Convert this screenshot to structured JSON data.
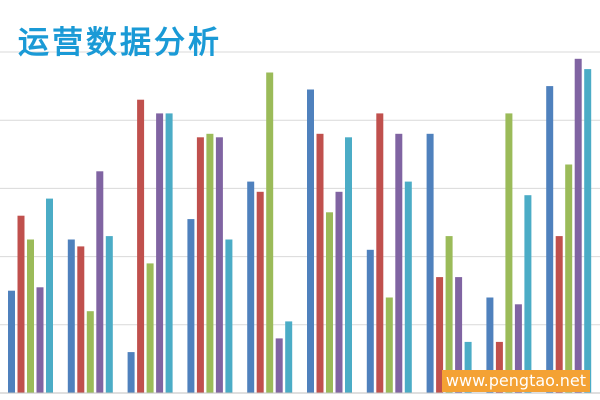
{
  "chart_data": {
    "type": "bar",
    "title": "运营数据分析",
    "categories": [
      "",
      "",
      "",
      "",
      "",
      "",
      "",
      "",
      "",
      ""
    ],
    "ylim": [
      0,
      100
    ],
    "grid": true,
    "legend": "none",
    "series": [
      {
        "color": "#4f81bd",
        "values": [
          30,
          45,
          12,
          51,
          62,
          89,
          42,
          76,
          28,
          90
        ]
      },
      {
        "color": "#c0504d",
        "values": [
          52,
          43,
          86,
          75,
          59,
          76,
          82,
          34,
          15,
          46
        ]
      },
      {
        "color": "#9bbb59",
        "values": [
          45,
          24,
          38,
          76,
          94,
          53,
          28,
          46,
          82,
          67
        ]
      },
      {
        "color": "#8064a2",
        "values": [
          31,
          65,
          82,
          75,
          16,
          59,
          76,
          34,
          26,
          98
        ]
      },
      {
        "color": "#4bacc6",
        "values": [
          57,
          46,
          82,
          45,
          21,
          75,
          62,
          15,
          58,
          95
        ]
      }
    ]
  },
  "watermark": {
    "text": "www.pengtao.net",
    "color": "#ffffff",
    "background": "#f4a234"
  },
  "colors": {
    "title": "#1a9ad6",
    "grid": "#d9d9d9",
    "axis": "#bfbfbf"
  }
}
